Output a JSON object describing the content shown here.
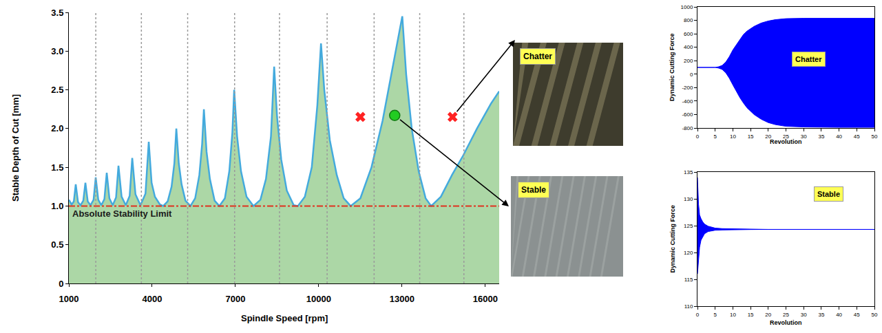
{
  "chart_data": [
    {
      "type": "area",
      "x_label": "Spindle Speed [rpm]",
      "y_label": "Stable Depth of Cut [mm]",
      "xlim": [
        1000,
        16500
      ],
      "xticks": [
        1000,
        4000,
        7000,
        10000,
        13000,
        16000
      ],
      "ylim": [
        0,
        3.5
      ],
      "yticks": [
        0,
        0.5,
        {
          "value": 1,
          "label": "1.0"
        },
        1.5,
        {
          "value": 2,
          "label": "2.0"
        },
        2.5,
        {
          "value": 3,
          "label": "3.0"
        },
        3.5
      ],
      "grid": false,
      "vlines": {
        "values": [
          1970,
          3612,
          5279,
          6970,
          8587,
          10303,
          11995,
          13637,
          15229
        ],
        "color": "#9a9a9a",
        "line_style": "dot"
      },
      "hline": {
        "value": 1.0,
        "label": "Absolute Stability Limit",
        "color": "#e0301e",
        "line_style": "dashdot"
      },
      "series": [
        {
          "type": "area",
          "color": "#44aadd",
          "x": [
            1000,
            1100,
            1180,
            1248,
            1330,
            1420,
            1520,
            1596,
            1680,
            1780,
            1890,
            1968,
            2060,
            2170,
            2280,
            2365,
            2460,
            2580,
            2700,
            2787,
            2900,
            3050,
            3190,
            3283,
            3400,
            3580,
            3760,
            3878,
            3980,
            4100,
            4280,
            4400,
            4560,
            4700,
            4800,
            4871,
            4960,
            5060,
            5200,
            5380,
            5550,
            5700,
            5800,
            5864,
            5960,
            6080,
            6250,
            6420,
            6620,
            6780,
            6890,
            6955,
            7060,
            7200,
            7400,
            7650,
            7900,
            8100,
            8280,
            8395,
            8500,
            8650,
            8850,
            9100,
            9250,
            9500,
            9750,
            9950,
            10082,
            10200,
            10400,
            10650,
            10900,
            11150,
            11500,
            11900,
            12300,
            12650,
            13010,
            13150,
            13350,
            13600,
            13850,
            14050,
            14400,
            14800,
            15200,
            15700,
            16200,
            16500
          ],
          "values": [
            1.08,
            1.02,
            1.06,
            1.28,
            1.05,
            1.01,
            1.07,
            1.3,
            1.06,
            1.01,
            1.08,
            1.37,
            1.08,
            1.01,
            1.09,
            1.43,
            1.1,
            1.01,
            1.11,
            1.52,
            1.12,
            1.01,
            1.13,
            1.62,
            1.15,
            1.01,
            1.16,
            1.83,
            1.3,
            1.12,
            1.02,
            1.0,
            1.06,
            1.25,
            1.55,
            2.0,
            1.55,
            1.28,
            1.07,
            1.0,
            1.1,
            1.4,
            1.8,
            2.25,
            1.7,
            1.35,
            1.07,
            1.0,
            1.1,
            1.45,
            1.95,
            2.5,
            1.9,
            1.45,
            1.12,
            1.0,
            1.08,
            1.35,
            1.9,
            2.8,
            2.15,
            1.6,
            1.2,
            1.01,
            1.0,
            1.12,
            1.5,
            2.3,
            3.1,
            2.5,
            1.85,
            1.4,
            1.1,
            1.0,
            1.1,
            1.5,
            2.1,
            2.75,
            3.45,
            2.7,
            2.0,
            1.45,
            1.1,
            1.0,
            1.12,
            1.4,
            1.65,
            2.0,
            2.32,
            2.48
          ]
        },
        {
          "type": "scatter",
          "marker": "x",
          "color": "#ff2222",
          "x": [
            11500,
            14820
          ],
          "values": [
            2.15,
            2.15
          ]
        },
        {
          "type": "scatter",
          "marker": "circle",
          "color": "#22cc22",
          "x": [
            12737
          ],
          "values": [
            2.17
          ]
        }
      ]
    },
    {
      "type": "band",
      "x_label": "Revolution",
      "y_label": "Dynamic Cutting Force",
      "xlim": [
        0,
        50
      ],
      "xticks": [
        0,
        5,
        10,
        15,
        20,
        25,
        30,
        35,
        40,
        45,
        50
      ],
      "ylim": [
        -800,
        1000
      ],
      "yticks": [
        -800,
        -600,
        -400,
        -200,
        0,
        200,
        400,
        600,
        800,
        1000
      ],
      "grid": false,
      "annotations": [
        {
          "text": "Chatter",
          "x": 31.5,
          "y": 224
        }
      ],
      "series": [
        {
          "type": "band",
          "color": "#0000ff",
          "x": [
            0,
            5,
            6,
            7,
            8,
            9,
            10,
            11,
            12,
            13,
            14,
            16,
            18,
            20,
            22,
            25,
            30,
            40,
            50
          ],
          "upper": [
            100,
            100,
            110,
            130,
            180,
            260,
            360,
            440,
            520,
            590,
            640,
            710,
            760,
            790,
            810,
            825,
            830,
            830,
            830
          ],
          "lower": [
            100,
            100,
            90,
            70,
            20,
            -60,
            -160,
            -260,
            -350,
            -430,
            -500,
            -600,
            -670,
            -720,
            -750,
            -775,
            -785,
            -790,
            -790
          ]
        }
      ]
    },
    {
      "type": "band",
      "x_label": "Revolution",
      "y_label": "Dynamic Cutting Force",
      "xlim": [
        0,
        50
      ],
      "xticks": [
        0,
        5,
        10,
        15,
        20,
        25,
        30,
        35,
        40,
        45,
        50
      ],
      "ylim": [
        110,
        135
      ],
      "yticks": [
        110,
        115,
        120,
        125,
        130,
        135
      ],
      "grid": false,
      "annotations": [
        {
          "text": "Stable",
          "x": 37,
          "y": 130.9
        }
      ],
      "series": [
        {
          "type": "band",
          "color": "#0000ff",
          "x": [
            0,
            0.3,
            0.6,
            1,
            1.5,
            2,
            3,
            4,
            5,
            7,
            10,
            15,
            20,
            50
          ],
          "upper": [
            134,
            129,
            127,
            126.3,
            125.7,
            125.3,
            124.9,
            124.7,
            124.55,
            124.45,
            124.4,
            124.35,
            124.3,
            124.3
          ],
          "lower": [
            116,
            119,
            121,
            122.3,
            123,
            123.5,
            123.9,
            124.05,
            124.15,
            124.2,
            124.25,
            124.28,
            124.3,
            124.3
          ]
        }
      ]
    }
  ],
  "photos": [
    {
      "label": "Chatter"
    },
    {
      "label": "Stable"
    }
  ]
}
